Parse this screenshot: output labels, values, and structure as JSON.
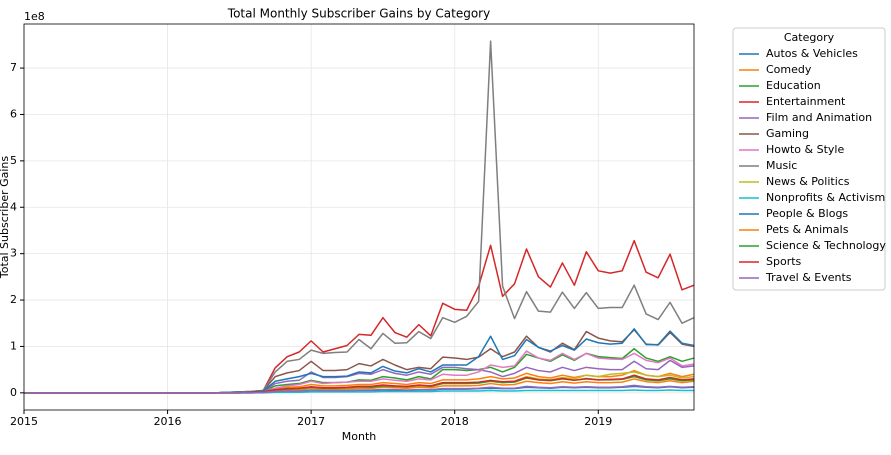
{
  "chart_data": {
    "type": "line",
    "title": "Total Monthly Subscriber Gains by Category",
    "x_label": "Month",
    "y_label": "Total Subscriber Gains",
    "y_offset_label": "1e8",
    "legend_title": "Category",
    "legend_position": "outside right",
    "grid": true,
    "x": [
      "2015-01",
      "2015-02",
      "2015-03",
      "2015-04",
      "2015-05",
      "2015-06",
      "2015-07",
      "2015-08",
      "2015-09",
      "2015-10",
      "2015-11",
      "2015-12",
      "2016-01",
      "2016-02",
      "2016-03",
      "2016-04",
      "2016-05",
      "2016-06",
      "2016-07",
      "2016-08",
      "2016-09",
      "2016-10",
      "2016-11",
      "2016-12",
      "2017-01",
      "2017-02",
      "2017-03",
      "2017-04",
      "2017-05",
      "2017-06",
      "2017-07",
      "2017-08",
      "2017-09",
      "2017-10",
      "2017-11",
      "2017-12",
      "2018-01",
      "2018-02",
      "2018-03",
      "2018-04",
      "2018-05",
      "2018-06",
      "2018-07",
      "2018-08",
      "2018-09",
      "2018-10",
      "2018-11",
      "2018-12",
      "2019-01",
      "2019-02",
      "2019-03",
      "2019-04",
      "2019-05",
      "2019-06",
      "2019-07",
      "2019-08",
      "2019-09"
    ],
    "xlim": [
      "2015-01",
      "2019-09"
    ],
    "xticks": [
      {
        "value": "2015-01",
        "label": "2015"
      },
      {
        "value": "2016-01",
        "label": "2016"
      },
      {
        "value": "2017-01",
        "label": "2017"
      },
      {
        "value": "2018-01",
        "label": "2018"
      },
      {
        "value": "2019-01",
        "label": "2019"
      }
    ],
    "ylim": [
      -0.37,
      7.95
    ],
    "yticks": [
      0,
      1,
      2,
      3,
      4,
      5,
      6,
      7
    ],
    "series": [
      {
        "name": "Autos & Vehicles",
        "color": "#1f77b4",
        "values": [
          0,
          0,
          0,
          0,
          0,
          0,
          0,
          0,
          0,
          0,
          0,
          0,
          0,
          0,
          0,
          0,
          0,
          0,
          0,
          0,
          0.01,
          0.02,
          0.03,
          0.03,
          0.04,
          0.04,
          0.04,
          0.04,
          0.05,
          0.05,
          0.06,
          0.05,
          0.05,
          0.06,
          0.06,
          0.08,
          0.08,
          0.08,
          0.09,
          0.1,
          0.09,
          0.09,
          0.12,
          0.11,
          0.1,
          0.12,
          0.11,
          0.12,
          0.11,
          0.11,
          0.12,
          0.14,
          0.12,
          0.11,
          0.13,
          0.11,
          0.12
        ]
      },
      {
        "name": "Comedy",
        "color": "#ff7f0e",
        "values": [
          0,
          0,
          0,
          0,
          0,
          0,
          0,
          0,
          0,
          0,
          0,
          0,
          0,
          0,
          0,
          0,
          0,
          0,
          0.01,
          0.01,
          0.02,
          0.1,
          0.12,
          0.13,
          0.18,
          0.15,
          0.15,
          0.16,
          0.18,
          0.18,
          0.22,
          0.2,
          0.18,
          0.22,
          0.2,
          0.28,
          0.28,
          0.28,
          0.3,
          0.35,
          0.3,
          0.32,
          0.42,
          0.35,
          0.32,
          0.38,
          0.33,
          0.38,
          0.35,
          0.35,
          0.38,
          0.48,
          0.38,
          0.35,
          0.42,
          0.35,
          0.4
        ]
      },
      {
        "name": "Education",
        "color": "#2ca02c",
        "values": [
          0,
          0,
          0,
          0,
          0,
          0,
          0,
          0,
          0,
          0,
          0,
          0,
          0,
          0,
          0,
          0,
          0,
          0.01,
          0.01,
          0.02,
          0.03,
          0.15,
          0.18,
          0.2,
          0.27,
          0.22,
          0.22,
          0.23,
          0.28,
          0.27,
          0.35,
          0.32,
          0.28,
          0.35,
          0.3,
          0.5,
          0.5,
          0.48,
          0.5,
          0.55,
          0.45,
          0.55,
          0.83,
          0.75,
          0.68,
          0.82,
          0.7,
          0.85,
          0.78,
          0.76,
          0.74,
          0.95,
          0.75,
          0.68,
          0.78,
          0.68,
          0.75
        ]
      },
      {
        "name": "Entertainment",
        "color": "#d62728",
        "values": [
          0,
          0,
          0,
          0,
          0,
          0,
          0,
          0,
          0,
          0,
          0,
          0,
          0,
          0,
          0,
          0,
          0,
          0.01,
          0.02,
          0.03,
          0.05,
          0.54,
          0.78,
          0.88,
          1.12,
          0.88,
          0.95,
          1.02,
          1.26,
          1.24,
          1.62,
          1.3,
          1.2,
          1.47,
          1.23,
          1.93,
          1.8,
          1.78,
          2.3,
          3.18,
          2.08,
          2.35,
          3.1,
          2.5,
          2.28,
          2.8,
          2.32,
          3.04,
          2.63,
          2.58,
          2.63,
          3.28,
          2.6,
          2.48,
          2.99,
          2.22,
          2.32
        ]
      },
      {
        "name": "Film and Animation",
        "color": "#9467bd",
        "values": [
          0,
          0,
          0,
          0,
          0,
          0,
          0,
          0,
          0,
          0,
          0,
          0,
          0,
          0,
          0,
          0,
          0,
          0.01,
          0.01,
          0.02,
          0.03,
          0.2,
          0.25,
          0.27,
          0.45,
          0.33,
          0.33,
          0.35,
          0.42,
          0.4,
          0.5,
          0.42,
          0.38,
          0.45,
          0.4,
          0.55,
          0.55,
          0.52,
          0.5,
          0.45,
          0.35,
          0.42,
          0.55,
          0.48,
          0.45,
          0.55,
          0.48,
          0.55,
          0.52,
          0.5,
          0.5,
          0.68,
          0.52,
          0.5,
          0.7,
          0.55,
          0.58
        ]
      },
      {
        "name": "Gaming",
        "color": "#8c564b",
        "values": [
          0,
          0,
          0,
          0,
          0,
          0,
          0,
          0,
          0,
          0,
          0,
          0,
          0,
          0,
          0,
          0,
          0,
          0.01,
          0.02,
          0.03,
          0.05,
          0.35,
          0.43,
          0.48,
          0.68,
          0.48,
          0.48,
          0.5,
          0.63,
          0.58,
          0.72,
          0.6,
          0.5,
          0.55,
          0.52,
          0.77,
          0.75,
          0.72,
          0.77,
          0.95,
          0.78,
          0.88,
          1.22,
          0.98,
          0.88,
          1.07,
          0.93,
          1.32,
          1.18,
          1.12,
          1.1,
          1.36,
          1.05,
          1.03,
          1.3,
          1.05,
          1.0
        ]
      },
      {
        "name": "Howto & Style",
        "color": "#e377c2",
        "values": [
          0,
          0,
          0,
          0,
          0,
          0,
          0,
          0,
          0,
          0,
          0,
          0,
          0,
          0,
          0,
          0,
          0,
          0.01,
          0.01,
          0.01,
          0.02,
          0.1,
          0.15,
          0.18,
          0.25,
          0.2,
          0.22,
          0.23,
          0.25,
          0.25,
          0.3,
          0.27,
          0.25,
          0.3,
          0.28,
          0.4,
          0.38,
          0.38,
          0.45,
          0.6,
          0.55,
          0.58,
          0.9,
          0.75,
          0.7,
          0.85,
          0.72,
          0.85,
          0.75,
          0.73,
          0.72,
          0.85,
          0.7,
          0.65,
          0.75,
          0.58,
          0.62
        ]
      },
      {
        "name": "Music",
        "color": "#7f7f7f",
        "values": [
          0,
          0,
          0,
          0,
          0,
          0,
          0,
          0,
          0,
          0,
          0,
          0,
          0,
          0,
          0,
          0,
          0,
          0.01,
          0.02,
          0.03,
          0.05,
          0.45,
          0.68,
          0.72,
          0.92,
          0.85,
          0.87,
          0.88,
          1.15,
          0.95,
          1.28,
          1.07,
          1.08,
          1.32,
          1.17,
          1.62,
          1.52,
          1.65,
          1.97,
          7.58,
          2.3,
          1.6,
          2.18,
          1.76,
          1.74,
          2.17,
          1.82,
          2.16,
          1.82,
          1.84,
          1.84,
          2.32,
          1.7,
          1.58,
          1.95,
          1.5,
          1.62
        ]
      },
      {
        "name": "News & Politics",
        "color": "#bcbd22",
        "values": [
          0,
          0,
          0,
          0,
          0,
          0,
          0,
          0,
          0,
          0,
          0,
          0,
          0,
          0,
          0,
          0,
          0,
          0,
          0,
          0.01,
          0.01,
          0.03,
          0.04,
          0.05,
          0.06,
          0.06,
          0.07,
          0.08,
          0.1,
          0.1,
          0.12,
          0.12,
          0.12,
          0.15,
          0.15,
          0.2,
          0.2,
          0.2,
          0.22,
          0.25,
          0.22,
          0.25,
          0.35,
          0.3,
          0.28,
          0.33,
          0.3,
          0.38,
          0.35,
          0.4,
          0.42,
          0.45,
          0.38,
          0.35,
          0.38,
          0.32,
          0.35
        ]
      },
      {
        "name": "Nonprofits & Activism",
        "color": "#17becf",
        "values": [
          0,
          0,
          0,
          0,
          0,
          0,
          0,
          0,
          0,
          0,
          0,
          0,
          0,
          0,
          0,
          0,
          0,
          0,
          0,
          0,
          0,
          0.01,
          0.01,
          0.01,
          0.02,
          0.02,
          0.02,
          0.02,
          0.02,
          0.02,
          0.03,
          0.03,
          0.03,
          0.03,
          0.03,
          0.04,
          0.04,
          0.04,
          0.04,
          0.05,
          0.04,
          0.04,
          0.05,
          0.05,
          0.05,
          0.05,
          0.05,
          0.05,
          0.05,
          0.05,
          0.05,
          0.06,
          0.05,
          0.05,
          0.06,
          0.05,
          0.05
        ]
      },
      {
        "name": "People & Blogs",
        "color": "#1f77b4",
        "values": [
          0,
          0,
          0,
          0,
          0,
          0,
          0,
          0,
          0,
          0,
          0,
          0,
          0,
          0,
          0,
          0,
          0,
          0.01,
          0.01,
          0.02,
          0.04,
          0.25,
          0.3,
          0.35,
          0.42,
          0.35,
          0.35,
          0.36,
          0.45,
          0.43,
          0.57,
          0.47,
          0.43,
          0.52,
          0.45,
          0.6,
          0.6,
          0.6,
          0.78,
          1.22,
          0.72,
          0.8,
          1.15,
          0.98,
          0.9,
          1.02,
          0.92,
          1.16,
          1.08,
          1.05,
          1.07,
          1.38,
          1.04,
          1.04,
          1.33,
          1.07,
          1.02
        ]
      },
      {
        "name": "Pets & Animals",
        "color": "#ff7f0e",
        "values": [
          0,
          0,
          0,
          0,
          0,
          0,
          0,
          0,
          0,
          0,
          0,
          0,
          0,
          0,
          0,
          0,
          0,
          0,
          0,
          0.01,
          0.01,
          0.05,
          0.06,
          0.07,
          0.1,
          0.08,
          0.08,
          0.09,
          0.1,
          0.1,
          0.12,
          0.11,
          0.1,
          0.12,
          0.11,
          0.15,
          0.15,
          0.15,
          0.16,
          0.2,
          0.17,
          0.18,
          0.25,
          0.22,
          0.2,
          0.24,
          0.21,
          0.24,
          0.22,
          0.22,
          0.23,
          0.3,
          0.24,
          0.22,
          0.26,
          0.22,
          0.25
        ]
      },
      {
        "name": "Science & Technology",
        "color": "#2ca02c",
        "values": [
          0,
          0,
          0,
          0,
          0,
          0,
          0,
          0,
          0,
          0,
          0,
          0,
          0,
          0,
          0,
          0,
          0,
          0,
          0,
          0.01,
          0.02,
          0.06,
          0.08,
          0.09,
          0.12,
          0.1,
          0.1,
          0.11,
          0.13,
          0.12,
          0.15,
          0.14,
          0.13,
          0.16,
          0.14,
          0.2,
          0.2,
          0.2,
          0.21,
          0.25,
          0.22,
          0.23,
          0.32,
          0.28,
          0.26,
          0.3,
          0.27,
          0.3,
          0.28,
          0.28,
          0.29,
          0.35,
          0.28,
          0.26,
          0.3,
          0.26,
          0.28
        ]
      },
      {
        "name": "Sports",
        "color": "#d62728",
        "values": [
          0,
          0,
          0,
          0,
          0,
          0,
          0,
          0,
          0,
          0,
          0,
          0,
          0,
          0,
          0,
          0,
          0,
          0,
          0,
          0.01,
          0.02,
          0.07,
          0.09,
          0.1,
          0.13,
          0.11,
          0.11,
          0.12,
          0.14,
          0.14,
          0.17,
          0.15,
          0.14,
          0.17,
          0.15,
          0.22,
          0.22,
          0.22,
          0.23,
          0.27,
          0.24,
          0.25,
          0.33,
          0.28,
          0.27,
          0.31,
          0.27,
          0.31,
          0.28,
          0.29,
          0.3,
          0.38,
          0.3,
          0.28,
          0.33,
          0.28,
          0.3
        ]
      },
      {
        "name": "Travel & Events",
        "color": "#9467bd",
        "values": [
          0,
          0,
          0,
          0,
          0,
          0,
          0,
          0,
          0,
          0,
          0,
          0,
          0,
          0,
          0,
          0,
          0,
          0,
          0,
          0,
          0.01,
          0.03,
          0.04,
          0.04,
          0.06,
          0.05,
          0.05,
          0.05,
          0.06,
          0.06,
          0.07,
          0.07,
          0.06,
          0.07,
          0.07,
          0.09,
          0.09,
          0.09,
          0.1,
          0.12,
          0.1,
          0.1,
          0.14,
          0.12,
          0.11,
          0.13,
          0.12,
          0.13,
          0.12,
          0.12,
          0.13,
          0.16,
          0.13,
          0.12,
          0.14,
          0.12,
          0.13
        ]
      }
    ]
  }
}
